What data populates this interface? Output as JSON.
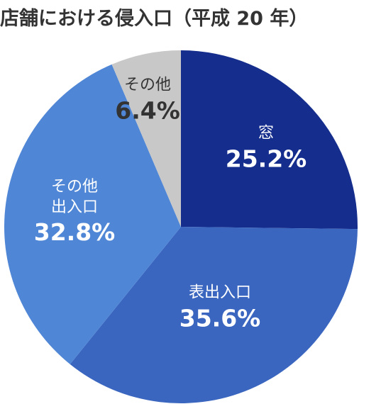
{
  "chart_data": {
    "type": "pie",
    "title": "店舗における侵入口（平成 20 年）",
    "categories": [
      "窓",
      "表出入口",
      "その他\n出入口",
      "その他"
    ],
    "values": [
      25.2,
      35.6,
      32.8,
      6.4
    ],
    "value_labels": [
      "25.2%",
      "35.6%",
      "32.8%",
      "6.4%"
    ],
    "colors": [
      "#152d8c",
      "#3a66c0",
      "#4f86d6",
      "#c8c8c8"
    ]
  }
}
